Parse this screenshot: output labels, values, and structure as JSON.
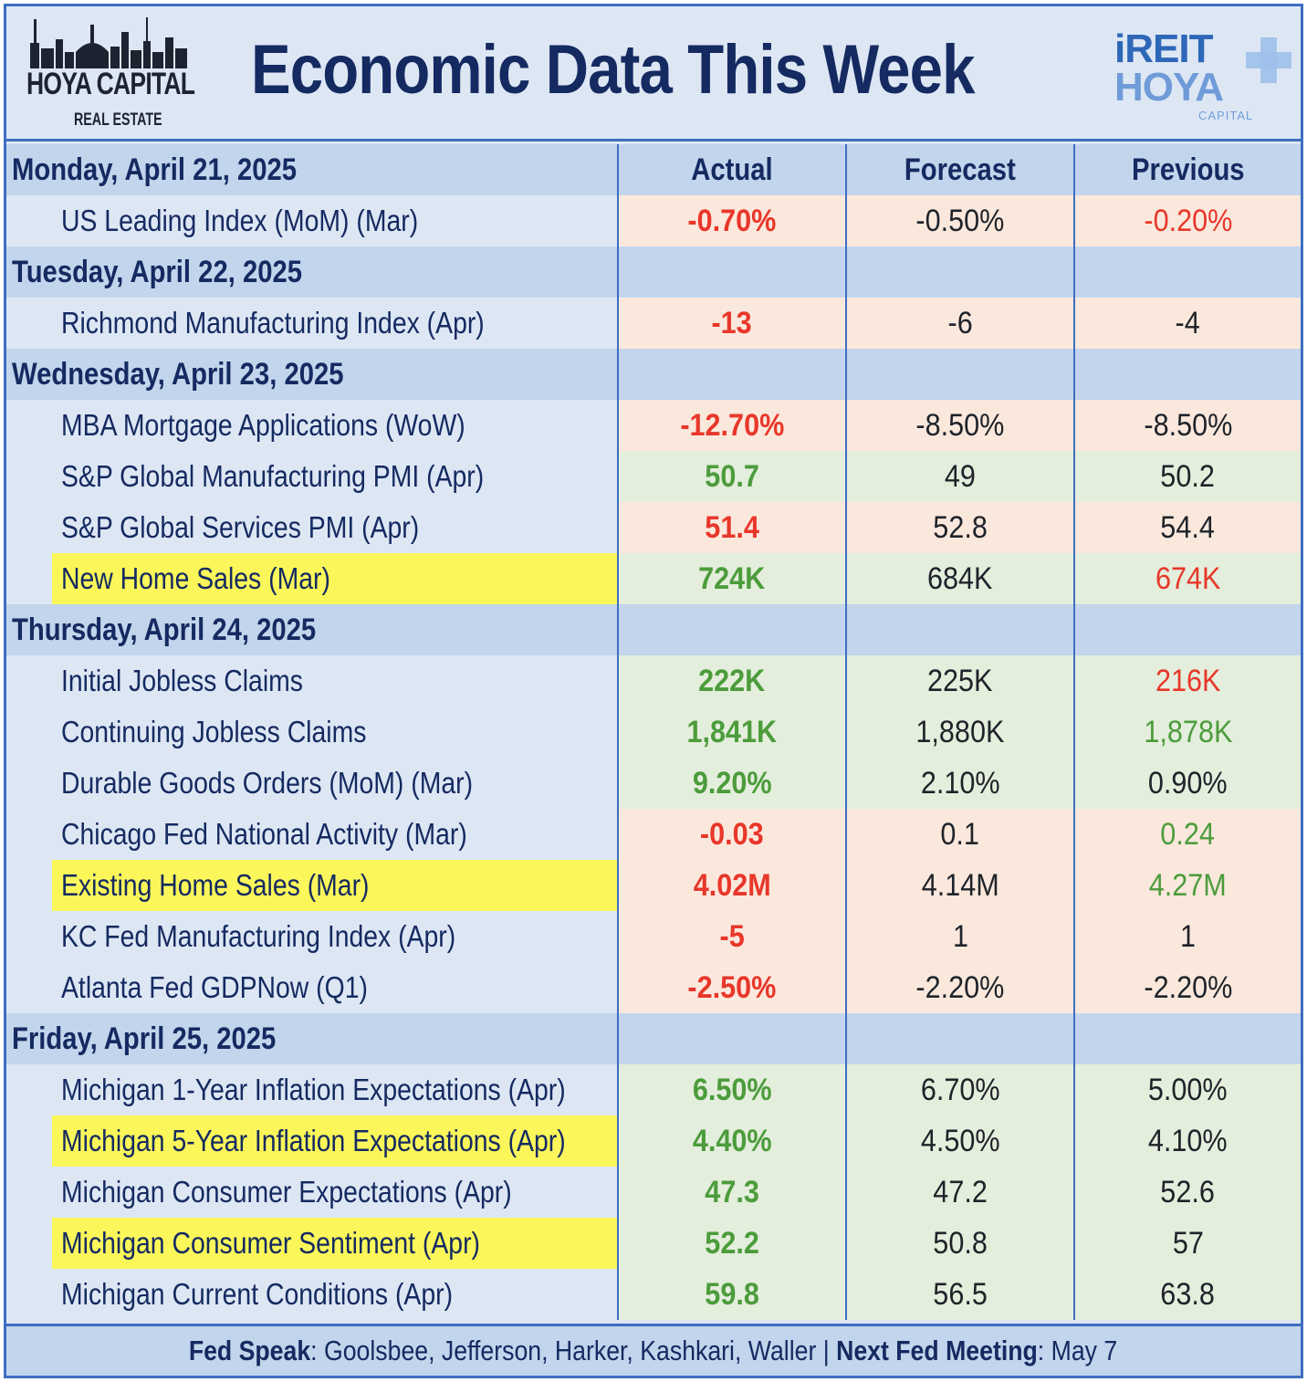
{
  "header": {
    "brand_main": "HOYA CAPITAL",
    "brand_sub": "REAL ESTATE",
    "title": "Economic Data This Week",
    "right_logo_top": "iREIT",
    "right_logo_bottom": "HOYA",
    "right_logo_caption": "CAPITAL"
  },
  "columns": {
    "actual": "Actual",
    "forecast": "Forecast",
    "previous": "Previous"
  },
  "days": [
    {
      "label": "Monday, April 21, 2025",
      "items": [
        {
          "name": "US Leading Index (MoM) (Mar)",
          "actual": "-0.70%",
          "forecast": "-0.50%",
          "previous": "-0.20%",
          "tone": "negative",
          "actual_color": "red",
          "previous_color": "red",
          "highlight": false
        }
      ]
    },
    {
      "label": "Tuesday, April 22, 2025",
      "items": [
        {
          "name": "Richmond Manufacturing Index (Apr)",
          "actual": "-13",
          "forecast": "-6",
          "previous": "-4",
          "tone": "negative",
          "actual_color": "red",
          "previous_color": "dark",
          "highlight": false
        }
      ]
    },
    {
      "label": "Wednesday, April 23, 2025",
      "items": [
        {
          "name": "MBA Mortgage Applications (WoW)",
          "actual": "-12.70%",
          "forecast": "-8.50%",
          "previous": "-8.50%",
          "tone": "negative",
          "actual_color": "red",
          "previous_color": "dark",
          "highlight": false
        },
        {
          "name": "S&P Global Manufacturing PMI (Apr)",
          "actual": "50.7",
          "forecast": "49",
          "previous": "50.2",
          "tone": "positive",
          "actual_color": "green",
          "previous_color": "dark",
          "highlight": false
        },
        {
          "name": "S&P Global Services PMI (Apr)",
          "actual": "51.4",
          "forecast": "52.8",
          "previous": "54.4",
          "tone": "negative",
          "actual_color": "red",
          "previous_color": "dark",
          "highlight": false
        },
        {
          "name": "New Home Sales (Mar)",
          "actual": "724K",
          "forecast": "684K",
          "previous": "674K",
          "tone": "positive",
          "actual_color": "green",
          "previous_color": "red",
          "highlight": true
        }
      ]
    },
    {
      "label": "Thursday, April 24, 2025",
      "items": [
        {
          "name": "Initial Jobless Claims",
          "actual": "222K",
          "forecast": "225K",
          "previous": "216K",
          "tone": "positive",
          "actual_color": "green",
          "previous_color": "red",
          "highlight": false
        },
        {
          "name": "Continuing Jobless Claims",
          "actual": "1,841K",
          "forecast": "1,880K",
          "previous": "1,878K",
          "tone": "positive",
          "actual_color": "green",
          "previous_color": "green",
          "highlight": false
        },
        {
          "name": "Durable Goods Orders (MoM) (Mar)",
          "actual": "9.20%",
          "forecast": "2.10%",
          "previous": "0.90%",
          "tone": "positive",
          "actual_color": "green",
          "previous_color": "dark",
          "highlight": false
        },
        {
          "name": "Chicago Fed National Activity (Mar)",
          "actual": "-0.03",
          "forecast": "0.1",
          "previous": "0.24",
          "tone": "negative",
          "actual_color": "red",
          "previous_color": "green",
          "highlight": false
        },
        {
          "name": "Existing Home Sales (Mar)",
          "actual": "4.02M",
          "forecast": "4.14M",
          "previous": "4.27M",
          "tone": "negative",
          "actual_color": "red",
          "previous_color": "green",
          "highlight": true
        },
        {
          "name": "KC Fed Manufacturing Index (Apr)",
          "actual": "-5",
          "forecast": "1",
          "previous": "1",
          "tone": "negative",
          "actual_color": "red",
          "previous_color": "dark",
          "highlight": false
        },
        {
          "name": "Atlanta Fed GDPNow (Q1)",
          "actual": "-2.50%",
          "forecast": "-2.20%",
          "previous": "-2.20%",
          "tone": "negative",
          "actual_color": "red",
          "previous_color": "dark",
          "highlight": false
        }
      ]
    },
    {
      "label": "Friday, April 25, 2025",
      "items": [
        {
          "name": "Michigan 1-Year Inflation Expectations (Apr)",
          "actual": "6.50%",
          "forecast": "6.70%",
          "previous": "5.00%",
          "tone": "positive",
          "actual_color": "green",
          "previous_color": "dark",
          "highlight": false
        },
        {
          "name": "Michigan 5-Year Inflation Expectations (Apr)",
          "actual": "4.40%",
          "forecast": "4.50%",
          "previous": "4.10%",
          "tone": "positive",
          "actual_color": "green",
          "previous_color": "dark",
          "highlight": true
        },
        {
          "name": "Michigan Consumer Expectations (Apr)",
          "actual": "47.3",
          "forecast": "47.2",
          "previous": "52.6",
          "tone": "positive",
          "actual_color": "green",
          "previous_color": "dark",
          "highlight": false
        },
        {
          "name": "Michigan Consumer Sentiment (Apr)",
          "actual": "52.2",
          "forecast": "50.8",
          "previous": "57",
          "tone": "positive",
          "actual_color": "green",
          "previous_color": "dark",
          "highlight": true
        },
        {
          "name": "Michigan Current Conditions (Apr)",
          "actual": "59.8",
          "forecast": "56.5",
          "previous": "63.8",
          "tone": "positive",
          "actual_color": "green",
          "previous_color": "dark",
          "highlight": false
        }
      ]
    }
  ],
  "footer": {
    "fed_speak_label": "Fed Speak",
    "fed_speak_value": ": Goolsbee, Jefferson, Harker, Kashkari, Waller | ",
    "next_meeting_label": "Next Fed Meeting",
    "next_meeting_value": ": May 7"
  },
  "colors": {
    "title_navy": "#152a61",
    "border_blue": "#3e6ec0",
    "day_row_bg": "#c2d5ec",
    "negative_bg": "#fbe8dd",
    "positive_bg": "#e4eedc",
    "highlight_yellow": "#fbf75a",
    "red": "#e8372a",
    "green": "#4c9c3c"
  }
}
